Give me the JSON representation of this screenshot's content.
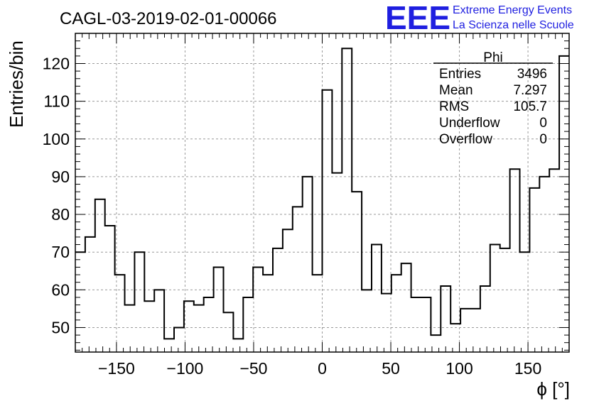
{
  "header": {
    "title": "CAGL-03-2019-02-01-00066",
    "logo_text": "EEE",
    "logo_line1": "Extreme Energy Events",
    "logo_line2": "La Scienza nelle Scuole",
    "logo_color": "#1f1fe0"
  },
  "stats": {
    "name": "Phi",
    "rows": [
      {
        "label": "Entries",
        "value": "3496"
      },
      {
        "label": "Mean",
        "value": "7.297"
      },
      {
        "label": "RMS",
        "value": "105.7"
      },
      {
        "label": "Underflow",
        "value": "0"
      },
      {
        "label": "Overflow",
        "value": "0"
      }
    ]
  },
  "chart_data": {
    "type": "histogram",
    "title": "CAGL-03-2019-02-01-00066",
    "xlabel": "ϕ [°]",
    "ylabel": "Entries/bin",
    "xlim": [
      -180,
      180
    ],
    "ylim": [
      43.5,
      128
    ],
    "bin_width": 7.2,
    "grid": true,
    "xticks": [
      -150,
      -100,
      -50,
      0,
      50,
      100,
      150
    ],
    "xtick_labels": [
      "−150",
      "−100",
      "−50",
      "0",
      "50",
      "100",
      "150"
    ],
    "yticks": [
      50,
      60,
      70,
      80,
      90,
      100,
      110,
      120
    ],
    "ytick_labels": [
      "50",
      "60",
      "70",
      "80",
      "90",
      "100",
      "110",
      "120"
    ],
    "values": [
      70,
      74,
      84,
      77,
      64,
      56,
      70,
      57,
      60,
      47,
      50,
      57,
      56,
      58,
      66,
      54,
      47,
      58,
      66,
      64,
      71,
      76,
      82,
      90,
      64,
      113,
      91,
      124,
      86,
      60,
      72,
      59,
      64,
      67,
      58,
      58,
      48,
      61,
      51,
      55,
      55,
      61,
      72,
      71,
      92,
      70,
      87,
      90,
      92,
      122
    ],
    "line_color": "#000000",
    "grid_color": "#9a9a9a"
  }
}
